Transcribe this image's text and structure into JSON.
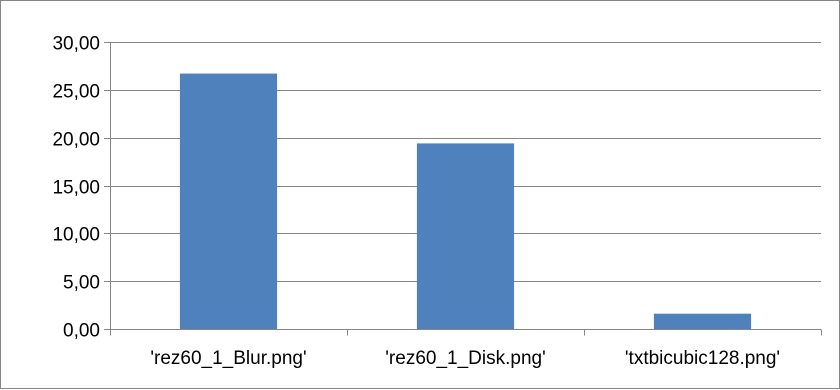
{
  "chart_data": {
    "type": "bar",
    "categories": [
      "'rez60_1_Blur.png'",
      "'rez60_1_Disk.png'",
      "'txtbicubic128.png'"
    ],
    "values": [
      26.7,
      19.4,
      1.6
    ],
    "ylim": [
      0,
      30
    ],
    "yticks": [
      "0,00",
      "5,00",
      "10,00",
      "15,00",
      "20,00",
      "25,00",
      "30,00"
    ],
    "ytick_values": [
      0,
      5,
      10,
      15,
      20,
      25,
      30
    ],
    "grid": true,
    "legend": "none",
    "bar_color": "#4F81BD",
    "grid_color": "#868686"
  }
}
